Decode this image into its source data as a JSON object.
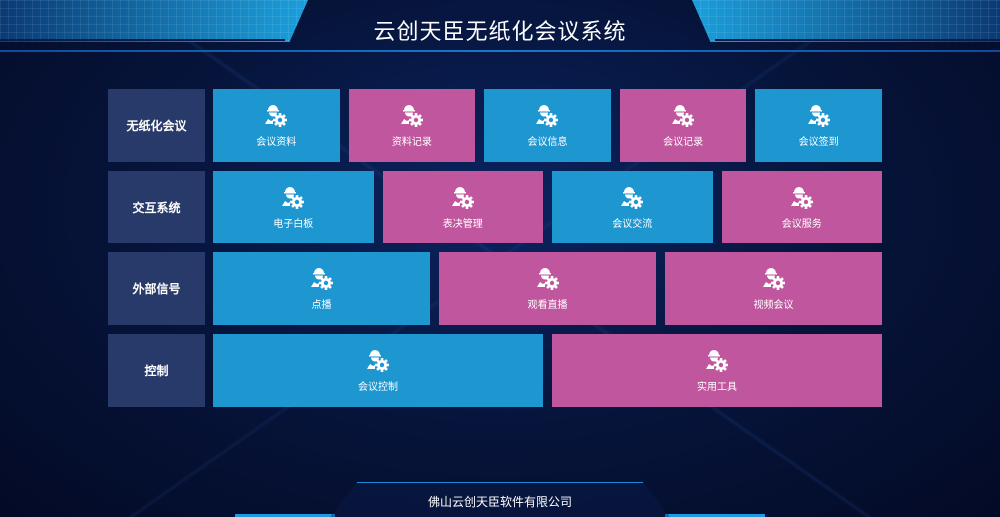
{
  "header": {
    "title": "云创天臣无纸化会议系统"
  },
  "colors": {
    "blue": "#1e96d0",
    "pink": "#c0569e",
    "row_label": "#283a6a",
    "background": "#061338"
  },
  "rows": [
    {
      "label": "无纸化会议",
      "tiles": [
        {
          "label": "会议资料",
          "color": "blue"
        },
        {
          "label": "资料记录",
          "color": "pink"
        },
        {
          "label": "会议信息",
          "color": "blue"
        },
        {
          "label": "会议记录",
          "color": "pink"
        },
        {
          "label": "会议签到",
          "color": "blue"
        }
      ]
    },
    {
      "label": "交互系统",
      "tiles": [
        {
          "label": "电子白板",
          "color": "blue"
        },
        {
          "label": "表决管理",
          "color": "pink"
        },
        {
          "label": "会议交流",
          "color": "blue"
        },
        {
          "label": "会议服务",
          "color": "pink"
        }
      ]
    },
    {
      "label": "外部信号",
      "tiles": [
        {
          "label": "点播",
          "color": "blue"
        },
        {
          "label": "观看直播",
          "color": "pink"
        },
        {
          "label": "视频会议",
          "color": "pink"
        }
      ]
    },
    {
      "label": "控制",
      "tiles": [
        {
          "label": "会议控制",
          "color": "blue"
        },
        {
          "label": "实用工具",
          "color": "pink"
        }
      ]
    }
  ],
  "tile_icon": "worker-gear-icon",
  "footer": {
    "company": "佛山云创天臣软件有限公司"
  }
}
